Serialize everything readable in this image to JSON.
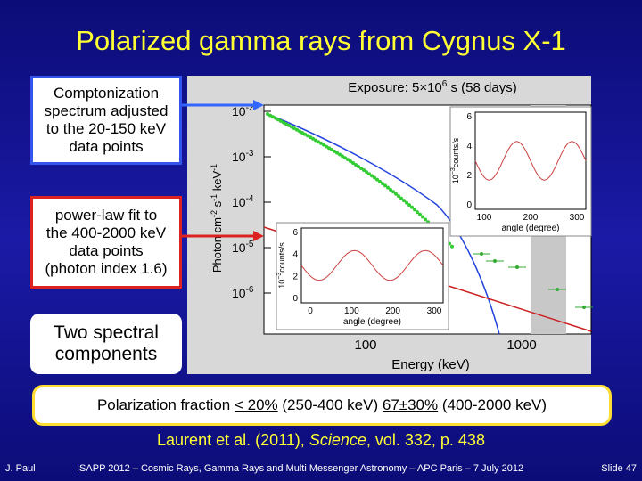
{
  "title": "Polarized gamma rays from Cygnus X-1",
  "boxes": [
    {
      "lines": [
        "Comptonization",
        "spectrum adjusted",
        "to the 20-150 keV",
        "data points"
      ]
    },
    {
      "lines": [
        "power-law fit to",
        "the 400-2000 keV",
        "data points",
        "(photon index 1.6)"
      ]
    },
    {
      "lines": [
        "Two spectral",
        "components"
      ]
    }
  ],
  "plot": {
    "exposure": {
      "text": "Exposure: 5×10",
      "exp": "6",
      "rest": " s (58 days)"
    },
    "y_axis_label": {
      "a": "Photon cm",
      "a_exp": "-2",
      "b": " s",
      "b_exp": "-1",
      "c": " keV",
      "c_exp": "-1"
    },
    "y_ticks": [
      {
        "base": "10",
        "exp": "-2"
      },
      {
        "base": "10",
        "exp": "-3"
      },
      {
        "base": "10",
        "exp": "-4"
      },
      {
        "base": "10",
        "exp": "-5"
      },
      {
        "base": "10",
        "exp": "-6"
      }
    ],
    "x_ticks": [
      "100",
      "1000"
    ],
    "x_axis_label": "Energy (keV)",
    "inset1": {
      "yticks": [
        "6",
        "4",
        "2",
        "0"
      ],
      "xticks": [
        "100",
        "200",
        "300"
      ],
      "xlabel": "angle (degree)",
      "ylabel": "10",
      "ylabel_exp": "−3",
      "ylabel_rest": "counts/s"
    },
    "inset2": {
      "yticks": [
        "6",
        "4",
        "2",
        "0"
      ],
      "xticks": [
        "0",
        "100",
        "200",
        "300"
      ],
      "xlabel": "angle (degree)",
      "ylabel": "10",
      "ylabel_exp": "−3",
      "ylabel_rest": "counts/s"
    }
  },
  "polarization": {
    "a": "Polarization fraction ",
    "b": "< 20%",
    "c": " (250-400 keV) ",
    "d": "67±30%",
    "e": " (400-2000 keV)"
  },
  "citation": {
    "prefix": "Laurent et al. (2011), ",
    "journal": "Science",
    "suffix": ", vol. 332, p. 438"
  },
  "footer": {
    "author": "J. Paul",
    "event": "ISAPP 2012 – Cosmic Rays, Gamma Rays and Multi Messenger Astronomy – APC Paris – 7 July 2012",
    "slide": "Slide 47"
  }
}
